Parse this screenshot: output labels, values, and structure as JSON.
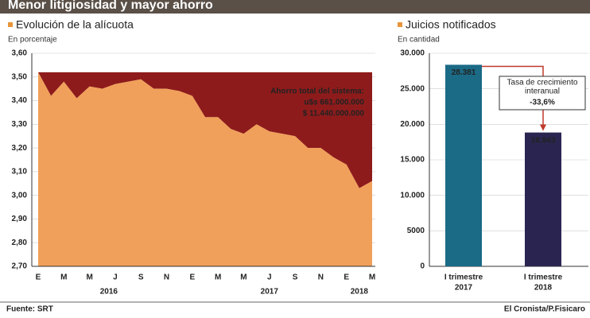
{
  "header": {
    "title": "Menor litigiosidad y mayor ahorro"
  },
  "chart_data": [
    {
      "type": "area",
      "title": "Evolución de la alícuota",
      "subtitle": "En porcentaje",
      "categories": [
        "E",
        null,
        "M",
        null,
        "M",
        null,
        "J",
        null,
        "S",
        null,
        "N",
        null,
        "E",
        null,
        "M",
        null,
        "M",
        null,
        "J",
        null,
        "S",
        null,
        "N",
        null,
        "E",
        null,
        "M"
      ],
      "years": [
        "2016",
        "2017",
        "2018"
      ],
      "values": [
        3.52,
        3.42,
        3.48,
        3.41,
        3.46,
        3.45,
        3.47,
        3.48,
        3.49,
        3.45,
        3.45,
        3.44,
        3.42,
        3.33,
        3.33,
        3.28,
        3.26,
        3.3,
        3.27,
        3.26,
        3.25,
        3.2,
        3.2,
        3.16,
        3.13,
        3.03,
        3.06
      ],
      "color": "#f0a05a",
      "fill_above_color": "#8e1b1b",
      "reference_level": 3.52,
      "ylim": [
        2.7,
        3.6
      ],
      "yticks": [
        {
          "value": 2.7,
          "label": "2,70"
        },
        {
          "value": 2.8,
          "label": "2,80"
        },
        {
          "value": 2.9,
          "label": "2,90"
        },
        {
          "value": 3.0,
          "label": "3,00"
        },
        {
          "value": 3.1,
          "label": "3,10"
        },
        {
          "value": 3.2,
          "label": "3,20"
        },
        {
          "value": 3.3,
          "label": "3,30"
        },
        {
          "value": 3.4,
          "label": "3,40"
        },
        {
          "value": 3.5,
          "label": "3,50"
        },
        {
          "value": 3.6,
          "label": "3,60"
        }
      ],
      "grid": true,
      "annotation": [
        "Ahorro total del sistema:",
        "u$s 661.000.000",
        "$ 11.440.000.000"
      ]
    },
    {
      "type": "bar",
      "title": "Juicios notificados",
      "subtitle": "En cantidad",
      "categories": [
        [
          "I trimestre",
          "2017"
        ],
        [
          "I trimestre",
          "2018"
        ]
      ],
      "values": [
        28381,
        18843
      ],
      "value_labels": [
        "28.381",
        "18.843"
      ],
      "colors": [
        "#1b6a86",
        "#2a2550"
      ],
      "ylim": [
        0,
        30000
      ],
      "yticks": [
        0,
        5000,
        {
          "value": 10000,
          "label": "10.000"
        },
        {
          "value": 15000,
          "label": "15.000"
        },
        {
          "value": 20000,
          "label": "20.000"
        },
        {
          "value": 25000,
          "label": "25.000"
        },
        {
          "value": 30000,
          "label": "30.000"
        }
      ],
      "grid": true,
      "annotation": {
        "text": [
          "Tasa de crecimiento",
          "interanual"
        ],
        "value": "-33,6%"
      }
    }
  ],
  "footer": {
    "source": "Fuente: SRT",
    "credit": "El Cronista/P.Fisicaro"
  }
}
